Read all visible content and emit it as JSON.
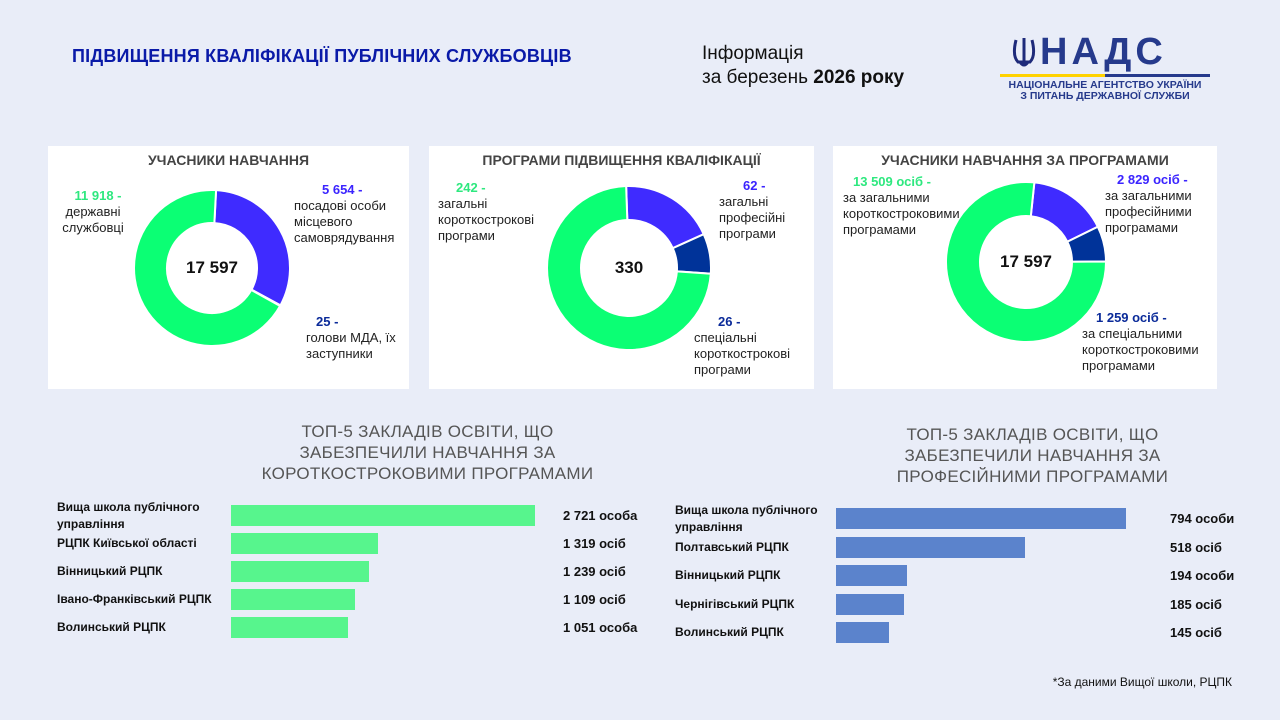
{
  "header": {
    "title": "ПІДВИЩЕННЯ КВАЛІФІКАЦІЇ ПУБЛІЧНИХ СЛУЖБОВЦІВ",
    "info_line1": "Інформація",
    "info_line2_prefix": "за березень ",
    "info_line2_bold": "2026 року"
  },
  "logo": {
    "name": "НАДС",
    "line1": "НАЦІОНАЛЬНЕ АГЕНТСТВО УКРАЇНИ",
    "line2": "З ПИТАНЬ ДЕРЖАВНОЇ СЛУЖБИ"
  },
  "colors": {
    "green": "#0bff74",
    "blue": "#3f2bff",
    "navy": "#003399",
    "bar_green": "#57f58d",
    "bar_blue": "#5b83cc",
    "title": "#0a1aa8"
  },
  "chart_data": [
    {
      "type": "pie",
      "title": "УЧАСНИКИ НАВЧАННЯ",
      "total": "17 597",
      "slices": [
        {
          "value": 5654,
          "value_label": "5 654  -",
          "label": "посадові особи місцевого самоврядування",
          "color": "#3f2bff"
        },
        {
          "value": 25,
          "value_label": "25 -",
          "label": "голови МДА, їх заступники",
          "color": "#003399"
        },
        {
          "value": 11918,
          "value_label": "11 918 -",
          "label": "державні службовці",
          "color": "#0bff74"
        }
      ]
    },
    {
      "type": "pie",
      "title": "ПРОГРАМИ ПІДВИЩЕННЯ КВАЛІФІКАЦІЇ",
      "total": "330",
      "slices": [
        {
          "value": 62,
          "value_label": "62 -",
          "label": "загальні професійні програми",
          "color": "#3f2bff"
        },
        {
          "value": 26,
          "value_label": "26 -",
          "label": "спеціальні короткострокові програми",
          "color": "#003399"
        },
        {
          "value": 242,
          "value_label": "242 -",
          "label": "загальні короткострокові програми",
          "color": "#0bff74"
        }
      ]
    },
    {
      "type": "pie",
      "title": "УЧАСНИКИ НАВЧАННЯ ЗА ПРОГРАМАМИ",
      "total": "17 597",
      "slices": [
        {
          "value": 2829,
          "value_label": "2 829 осіб  -",
          "label": "за загальними професійними програмами",
          "color": "#3f2bff"
        },
        {
          "value": 1259,
          "value_label": "1 259 осіб -",
          "label": "за спеціальними короткостроковими програмами",
          "color": "#003399"
        },
        {
          "value": 13509,
          "value_label": "13 509 осіб -",
          "label": "за загальними короткостроковими програмами",
          "color": "#0bff74"
        }
      ]
    },
    {
      "type": "bar",
      "orientation": "horizontal",
      "title": "ТОП-5 ЗАКЛАДІВ ОСВІТИ, ЩО ЗАБЕЗПЕЧИЛИ НАВЧАННЯ ЗА КОРОТКОСТРОКОВИМИ ПРОГРАМАМИ",
      "categories": [
        "Вища школа публічного управління",
        "РЦПК Київської області",
        "Вінницький РЦПК",
        "Івано-Франківський РЦПК",
        "Волинський РЦПК"
      ],
      "values": [
        2721,
        1319,
        1239,
        1109,
        1051
      ],
      "value_labels": [
        "2 721 особа",
        "1 319 осіб",
        "1 239 осіб",
        "1 109 осіб",
        "1 051 особа"
      ],
      "color": "#57f58d"
    },
    {
      "type": "bar",
      "orientation": "horizontal",
      "title": "ТОП-5 ЗАКЛАДІВ ОСВІТИ, ЩО ЗАБЕЗПЕЧИЛИ НАВЧАННЯ ЗА ПРОФЕСІЙНИМИ ПРОГРАМАМИ",
      "categories": [
        "Вища школа публічного управління",
        "Полтавський РЦПК",
        "Вінницький РЦПК",
        "Чернігівський РЦПК",
        "Волинський РЦПК"
      ],
      "values": [
        794,
        518,
        194,
        185,
        145
      ],
      "value_labels": [
        "794 особи",
        "518 осіб",
        "194 особи",
        "185 осіб",
        "145 осіб"
      ],
      "color": "#5b83cc"
    }
  ],
  "footnote": "*За даними Вищої школи, РЦПК"
}
